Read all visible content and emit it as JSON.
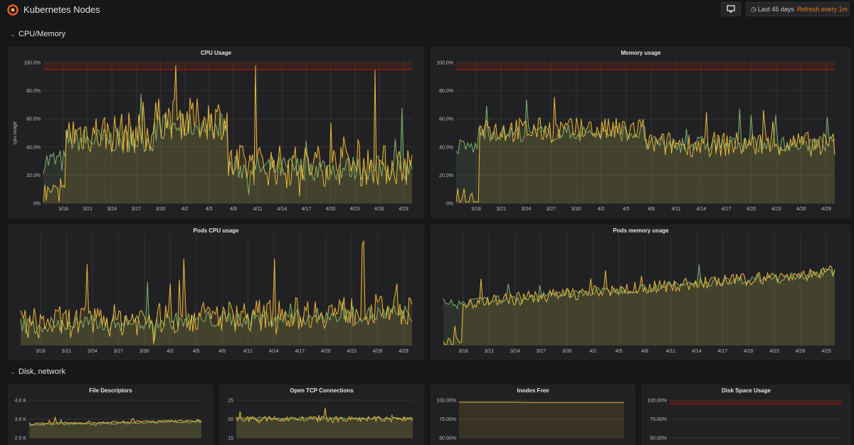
{
  "app": {
    "title": "Kubernetes Nodes"
  },
  "toolbar": {
    "time_range": "Last 45 days",
    "refresh_label": "Refresh every 1m"
  },
  "rows": [
    {
      "title": "CPU/Memory"
    },
    {
      "title": "Disk, network"
    }
  ],
  "icons": {
    "logo": "grafana-logo-icon",
    "tv": "monitor-icon",
    "clock": "clock-icon",
    "chevron": "chevron-down-icon"
  },
  "colors": {
    "green": "#7eb26d",
    "yellow": "#eab839",
    "threshold": "#bf1b00",
    "background": "#161719",
    "panel": "#212124"
  },
  "panels": [
    {
      "id": "cpu-usage",
      "title": "CPU Usage",
      "ylabel": "cpu usage",
      "yticks": [
        "0%",
        "20.0%",
        "40.0%",
        "60.0%",
        "80.0%",
        "100.0%"
      ],
      "xticks": [
        "3/18",
        "3/21",
        "3/24",
        "3/27",
        "3/30",
        "4/2",
        "4/5",
        "4/8",
        "4/11",
        "4/14",
        "4/17",
        "4/20",
        "4/23",
        "4/26",
        "4/29"
      ]
    },
    {
      "id": "memory-usage",
      "title": "Memory usage",
      "yticks": [
        "0%",
        "20.0%",
        "40.0%",
        "60.0%",
        "80.0%",
        "100.0%"
      ],
      "xticks": [
        "3/18",
        "3/21",
        "3/24",
        "3/27",
        "3/30",
        "4/2",
        "4/5",
        "4/8",
        "4/11",
        "4/14",
        "4/17",
        "4/20",
        "4/23",
        "4/26",
        "4/29"
      ]
    },
    {
      "id": "pods-cpu-usage",
      "title": "Pods CPU usage",
      "xticks": [
        "3/18",
        "3/21",
        "3/24",
        "3/27",
        "3/30",
        "4/2",
        "4/5",
        "4/8",
        "4/11",
        "4/14",
        "4/17",
        "4/20",
        "4/23",
        "4/26",
        "4/29"
      ]
    },
    {
      "id": "pods-memory-usage",
      "title": "Pods memory usage",
      "xticks": [
        "3/18",
        "3/21",
        "3/24",
        "3/27",
        "3/30",
        "4/2",
        "4/5",
        "4/8",
        "4/11",
        "4/14",
        "4/17",
        "4/20",
        "4/23",
        "4/26",
        "4/29"
      ]
    },
    {
      "id": "file-descriptors",
      "title": "File Descriptors",
      "yticks": [
        "2.0 K",
        "3.0 K",
        "4.0 K"
      ]
    },
    {
      "id": "open-tcp",
      "title": "Open TCP Connections",
      "yticks": [
        "15",
        "20",
        "25"
      ]
    },
    {
      "id": "inodes-free",
      "title": "Inodes Free",
      "yticks": [
        "50.00%",
        "75.00%",
        "100.00%"
      ]
    },
    {
      "id": "disk-space",
      "title": "Disk Space Usage",
      "yticks": [
        "50.00%",
        "75.00%",
        "100.00%"
      ]
    }
  ]
}
